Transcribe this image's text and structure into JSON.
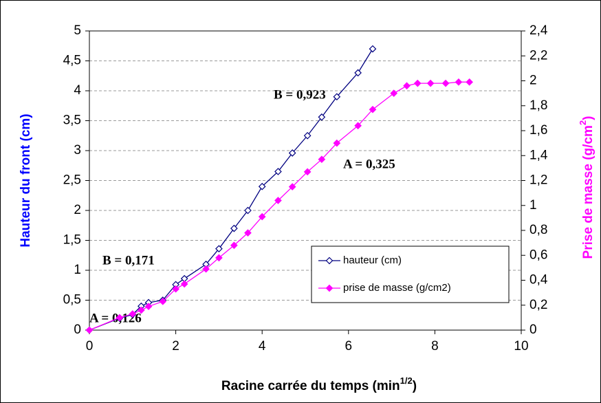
{
  "chart_data": {
    "type": "line",
    "xlabel": [
      "Racine carrée du temps (min",
      "1/2",
      ")"
    ],
    "ylabel": "Hauteur du front (cm)",
    "y2label": [
      "Prise de masse (g/cm",
      "2",
      ")"
    ],
    "ylabel_color": "#0000ff",
    "y2label_color": "#ff00ff",
    "xlim": [
      0,
      10
    ],
    "xticks": [
      0,
      2,
      4,
      6,
      8,
      10
    ],
    "ylim": [
      0,
      5
    ],
    "yticks": [
      0,
      {
        "value": 0.5,
        "label": "0,5"
      },
      1,
      {
        "value": 1.5,
        "label": "1,5"
      },
      2,
      {
        "value": 2.5,
        "label": "2,5"
      },
      3,
      {
        "value": 3.5,
        "label": "3,5"
      },
      4,
      {
        "value": 4.5,
        "label": "4,5"
      },
      5
    ],
    "y2lim": [
      0,
      2.4
    ],
    "y2ticks": [
      0,
      {
        "value": 0.2,
        "label": "0,2"
      },
      {
        "value": 0.4,
        "label": "0,4"
      },
      {
        "value": 0.6,
        "label": "0,6"
      },
      {
        "value": 0.8,
        "label": "0,8"
      },
      1,
      {
        "value": 1.2,
        "label": "1,2"
      },
      {
        "value": 1.4,
        "label": "1,4"
      },
      {
        "value": 1.6,
        "label": "1,6"
      },
      {
        "value": 1.8,
        "label": "1,8"
      },
      2,
      {
        "value": 2.2,
        "label": "2,2"
      },
      {
        "value": 2.4,
        "label": "2,4"
      }
    ],
    "grid": true,
    "legend": "lower right",
    "annotations": [
      "B = 0,923",
      "A = 0,325",
      "B = 0,171",
      "A = 0,126"
    ],
    "series": [
      {
        "name": "hauteur (cm)",
        "color": "#000080",
        "marker": "open",
        "x": [
          0,
          0.7,
          1.0,
          1.2,
          1.37,
          1.7,
          2.0,
          2.2,
          2.7,
          3.0,
          3.35,
          3.67,
          4.0,
          4.37,
          4.7,
          5.05,
          5.38,
          5.73,
          6.22,
          6.56
        ],
        "values": [
          0,
          0.2,
          0.26,
          0.4,
          0.46,
          0.5,
          0.76,
          0.86,
          1.1,
          1.36,
          1.7,
          2.0,
          2.4,
          2.65,
          2.96,
          3.25,
          3.56,
          3.9,
          4.3,
          4.7
        ]
      },
      {
        "name": "prise de masse (g/cm2)",
        "color": "#ff00ff",
        "marker": "filled",
        "axis": "y2",
        "x": [
          0,
          0.7,
          1.0,
          1.2,
          1.37,
          1.7,
          2.0,
          2.2,
          2.7,
          3.0,
          3.35,
          3.67,
          4.0,
          4.37,
          4.7,
          5.05,
          5.38,
          5.73,
          6.22,
          6.56,
          7.05,
          7.35,
          7.6,
          7.9,
          8.25,
          8.55,
          8.8
        ],
        "values": [
          0,
          0.1,
          0.13,
          0.16,
          0.19,
          0.23,
          0.33,
          0.37,
          0.49,
          0.58,
          0.68,
          0.78,
          0.91,
          1.04,
          1.15,
          1.27,
          1.37,
          1.5,
          1.64,
          1.77,
          1.9,
          1.96,
          1.98,
          1.98,
          1.98,
          1.99,
          1.99
        ]
      }
    ]
  }
}
